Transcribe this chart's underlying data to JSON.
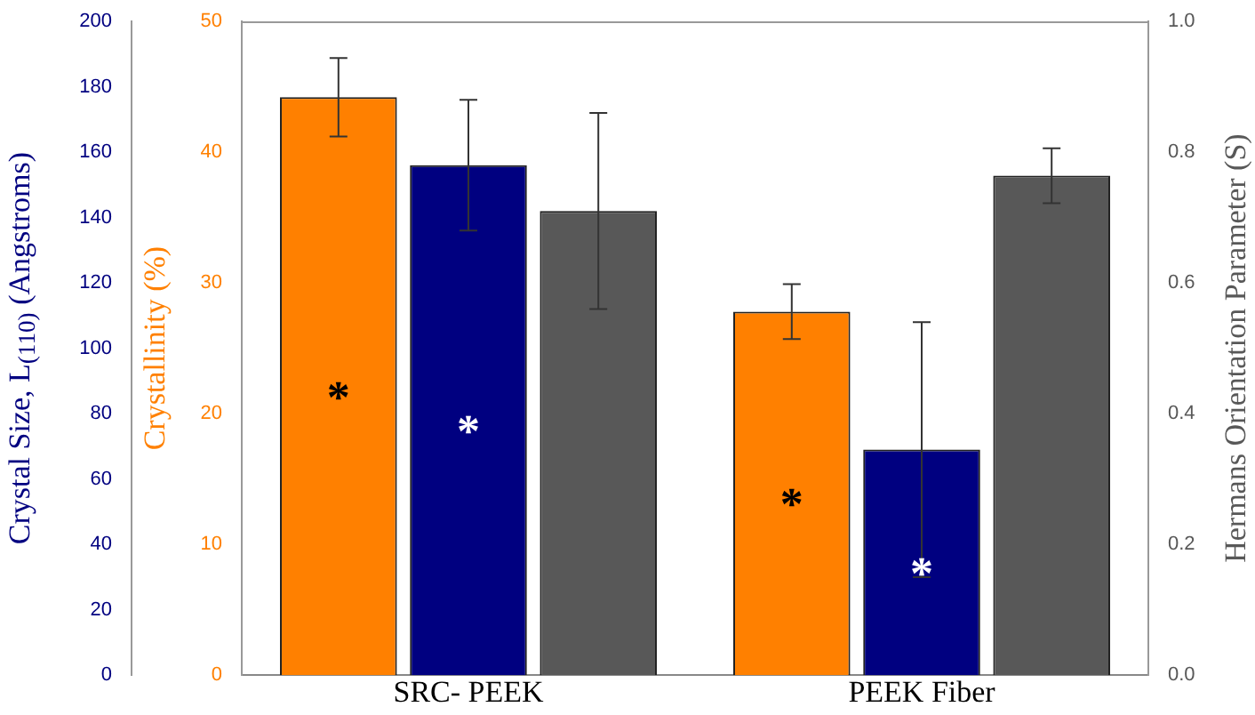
{
  "chart_data": {
    "type": "bar",
    "categories": [
      "SRC- PEEK",
      "PEEK Fiber"
    ],
    "ylabel": "Crystal Size, L$_{(110)}$ (Angstroms)",
    "y2label": "Crystallinity (%)",
    "y3label": "Hermans Orientation Parameter (S)",
    "series": [
      {
        "axis": "y2",
        "color": "#ff8000",
        "values": [
          44.2,
          27.8
        ],
        "errors": [
          3,
          2.1
        ],
        "value_labels": [
          "*",
          "*"
        ]
      },
      {
        "axis": "y",
        "color": "#000080",
        "values": [
          156,
          69
        ],
        "errors": [
          20,
          39
        ],
        "value_labels": [
          "*",
          "*"
        ]
      },
      {
        "axis": "y3",
        "color": "#585858",
        "values": [
          0.71,
          0.764
        ],
        "errors": [
          0.15,
          0.042
        ]
      }
    ],
    "ylim": [
      0,
      200
    ],
    "yticks": [
      0,
      20,
      40,
      60,
      80,
      100,
      120,
      140,
      160,
      180,
      200
    ],
    "y2lim": [
      0,
      50
    ],
    "y2ticks": [
      0,
      10,
      20,
      30,
      40,
      50
    ],
    "y3lim": [
      0,
      1
    ],
    "y3ticks": [
      {
        "value": 0,
        "label": "0.0"
      },
      {
        "value": 0.2,
        "label": "0.2"
      },
      {
        "value": 0.4,
        "label": "0.4"
      },
      {
        "value": 0.6,
        "label": "0.6"
      },
      {
        "value": 0.8,
        "label": "0.8"
      },
      {
        "value": 1,
        "label": "1.0"
      }
    ],
    "grid": false,
    "legend": false
  }
}
